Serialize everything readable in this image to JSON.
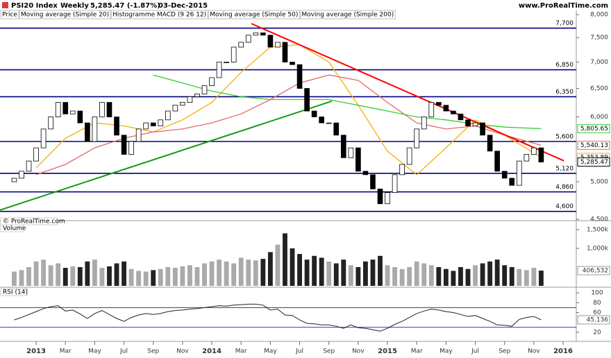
{
  "header": {
    "symbol": "PSI20 Index",
    "period": "Weekly",
    "quote": "5,285.47 (-1.87%)",
    "date": "03-Dec-2015",
    "site": "www.ProRealTime.com"
  },
  "chart_data": [
    {
      "type": "candlestick",
      "price_label": "Price",
      "macd_label": "Histogramme MACD (9 26 12)",
      "copyright": "© ProRealTime.com",
      "log": true,
      "xlim": [
        -2.47,
        36.9
      ],
      "ylim": [
        4500,
        8000
      ],
      "yticks": [
        {
          "value": 8000,
          "label": "8,000"
        },
        {
          "value": 7500,
          "label": "7,500"
        },
        {
          "value": 7000,
          "label": "7,000"
        },
        {
          "value": 6500,
          "label": "6,500"
        },
        {
          "value": 6000,
          "label": "6,000"
        },
        {
          "value": 5000,
          "label": "5,000"
        },
        {
          "value": 4500,
          "label": "4,500"
        }
      ],
      "xticks": [
        {
          "value": 0,
          "label": "2013"
        },
        {
          "value": 2,
          "label": "Mar"
        },
        {
          "value": 4,
          "label": "May"
        },
        {
          "value": 6,
          "label": "Jul"
        },
        {
          "value": 8,
          "label": "Sep"
        },
        {
          "value": 10,
          "label": "Nov"
        },
        {
          "value": 12,
          "label": "2014"
        },
        {
          "value": 14,
          "label": "Mar"
        },
        {
          "value": 16,
          "label": "May"
        },
        {
          "value": 18,
          "label": "Jul"
        },
        {
          "value": 20,
          "label": "Sep"
        },
        {
          "value": 22,
          "label": "Nov"
        },
        {
          "value": 24,
          "label": "2015"
        },
        {
          "value": 26,
          "label": "Mar"
        },
        {
          "value": 28,
          "label": "May"
        },
        {
          "value": 30,
          "label": "Jul"
        },
        {
          "value": 32,
          "label": "Sep"
        },
        {
          "value": 34,
          "label": "Nov"
        },
        {
          "value": 36,
          "label": "2016"
        }
      ],
      "x": [
        -1.5,
        -1,
        -0.5,
        0,
        0.5,
        1,
        1.5,
        2,
        2.5,
        3,
        3.5,
        4,
        4.5,
        5,
        5.5,
        6,
        6.5,
        7,
        7.5,
        8,
        8.5,
        9,
        9.5,
        10,
        10.5,
        11,
        11.5,
        12,
        12.5,
        13,
        13.5,
        14,
        14.5,
        15,
        15.5,
        16,
        16.5,
        17,
        17.5,
        18,
        18.5,
        19,
        19.5,
        20,
        20.5,
        21,
        21.5,
        22,
        22.5,
        23,
        23.5,
        24,
        24.5,
        25,
        25.5,
        26,
        26.5,
        27,
        27.5,
        28,
        28.5,
        29,
        29.5,
        30,
        30.5,
        31,
        31.5,
        32,
        32.5,
        33,
        33.5,
        34,
        34.5
      ],
      "open": [
        5000,
        5050,
        5150,
        5300,
        5500,
        5800,
        6000,
        6250,
        6050,
        6100,
        5900,
        5600,
        6000,
        6250,
        6000,
        5700,
        5400,
        5600,
        5800,
        5900,
        5850,
        5950,
        6100,
        6200,
        6250,
        6350,
        6400,
        6550,
        6700,
        7000,
        7000,
        7300,
        7400,
        7550,
        7600,
        7550,
        7300,
        7400,
        7000,
        6950,
        6500,
        6100,
        6000,
        5900,
        5900,
        5700,
        5350,
        5500,
        5150,
        5100,
        4900,
        4700,
        4850,
        5100,
        5250,
        5500,
        5800,
        6000,
        6250,
        6200,
        6100,
        6050,
        5950,
        5850,
        5900,
        5700,
        5450,
        5150,
        5050,
        4950,
        5300,
        5400,
        5500
      ],
      "close": [
        5050,
        5150,
        5300,
        5500,
        5800,
        6000,
        6250,
        6050,
        6100,
        5900,
        5600,
        6000,
        6250,
        6000,
        5700,
        5400,
        5600,
        5800,
        5900,
        5850,
        5950,
        6100,
        6200,
        6250,
        6350,
        6400,
        6550,
        6700,
        7000,
        7000,
        7300,
        7400,
        7550,
        7600,
        7550,
        7300,
        7400,
        7000,
        6950,
        6500,
        6100,
        6000,
        5900,
        5900,
        5700,
        5350,
        5500,
        5150,
        5100,
        4900,
        4700,
        4850,
        5100,
        5250,
        5500,
        5800,
        6000,
        6250,
        6200,
        6100,
        6050,
        5950,
        5850,
        5900,
        5700,
        5450,
        5150,
        5050,
        4950,
        5300,
        5400,
        5500,
        5285.47
      ],
      "last_close_label": "5,285.47",
      "overlays": [
        {
          "name": "Moving average (Simple 20)",
          "color": "#f5b000",
          "x": [
            0,
            2,
            4,
            6,
            8,
            10,
            12,
            14,
            16,
            18,
            20,
            22,
            24,
            26,
            28,
            30,
            32,
            34.5
          ],
          "values": [
            5200,
            5650,
            5900,
            5850,
            5750,
            5950,
            6250,
            6800,
            7300,
            7350,
            7000,
            6200,
            5450,
            5100,
            5500,
            5950,
            5700,
            5353.89
          ],
          "last_label": "5,353.89"
        },
        {
          "name": "Moving average (Simple 50)",
          "color": "#e06a6a",
          "x": [
            0,
            2,
            4,
            6,
            8,
            10,
            12,
            14,
            16,
            18,
            20,
            22,
            24,
            26,
            28,
            30,
            32,
            34.5
          ],
          "values": [
            5100,
            5250,
            5500,
            5650,
            5750,
            5800,
            5900,
            6050,
            6300,
            6600,
            6750,
            6650,
            6250,
            5900,
            5800,
            5850,
            5700,
            5540.13
          ],
          "last_label": "5,540.13"
        },
        {
          "name": "Moving average (Simple 200)",
          "color": "#33cc33",
          "x": [
            8,
            10,
            12,
            14,
            16,
            18,
            20,
            22,
            24,
            26,
            28,
            30,
            32,
            34.5
          ],
          "values": [
            6750,
            6600,
            6450,
            6350,
            6300,
            6300,
            6300,
            6200,
            6100,
            6000,
            5950,
            5880,
            5830,
            5805.65
          ],
          "last_label": "5,805.65"
        }
      ],
      "levels": [
        {
          "value": 7700,
          "label": "7,700"
        },
        {
          "value": 6850,
          "label": "6,850"
        },
        {
          "value": 6350,
          "label": "6,350"
        },
        {
          "value": 5600,
          "label": "5,600"
        },
        {
          "value": 5120,
          "label": "5,120"
        },
        {
          "value": 4860,
          "label": "4,860"
        },
        {
          "value": 4600,
          "label": "4,600"
        }
      ],
      "level_color": "#000080",
      "trendlines": [
        {
          "color": "#ff0000",
          "x": [
            14.7,
            36.05
          ],
          "values": [
            7800,
            5304
          ]
        },
        {
          "color": "#129912",
          "x": [
            -2.47,
            20.2
          ],
          "values": [
            4617,
            6271
          ]
        }
      ]
    },
    {
      "type": "bar",
      "title": "Volume",
      "ylim": [
        0,
        1610
      ],
      "yticks": [
        {
          "value": 1500,
          "label": "1,500k"
        },
        {
          "value": 1000,
          "label": "1,000k"
        }
      ],
      "values": [
        380,
        420,
        500,
        650,
        700,
        550,
        600,
        480,
        520,
        500,
        650,
        700,
        480,
        520,
        600,
        650,
        450,
        400,
        380,
        420,
        450,
        500,
        480,
        520,
        550,
        500,
        600,
        650,
        700,
        650,
        600,
        750,
        700,
        680,
        720,
        900,
        1100,
        1400,
        1000,
        850,
        700,
        800,
        750,
        650,
        600,
        700,
        550,
        500,
        650,
        700,
        800,
        550,
        500,
        450,
        500,
        650,
        600,
        550,
        500,
        450,
        400,
        500,
        450,
        550,
        600,
        650,
        700,
        550,
        500,
        450,
        420,
        480,
        406.532
      ],
      "last_label": "406,532"
    },
    {
      "type": "line",
      "title": "RSI (14)",
      "color": "#222222",
      "ylim": [
        0,
        103
      ],
      "yticks": [
        100,
        80,
        60,
        20
      ],
      "levels": [
        70,
        30
      ],
      "level_color": "#3333aa",
      "values": [
        45,
        50,
        56,
        62,
        68,
        72,
        74,
        63,
        65,
        57,
        48,
        58,
        64,
        56,
        48,
        42,
        50,
        55,
        58,
        56,
        58,
        62,
        64,
        65,
        67,
        68,
        70,
        72,
        74,
        73,
        75,
        76,
        77,
        77,
        75,
        65,
        67,
        55,
        54,
        45,
        38,
        37,
        35,
        35,
        32,
        28,
        35,
        29,
        28,
        25,
        22,
        28,
        36,
        42,
        50,
        58,
        63,
        67,
        65,
        62,
        60,
        56,
        52,
        54,
        48,
        42,
        35,
        34,
        32,
        46,
        50,
        52,
        45.136
      ]
    }
  ]
}
